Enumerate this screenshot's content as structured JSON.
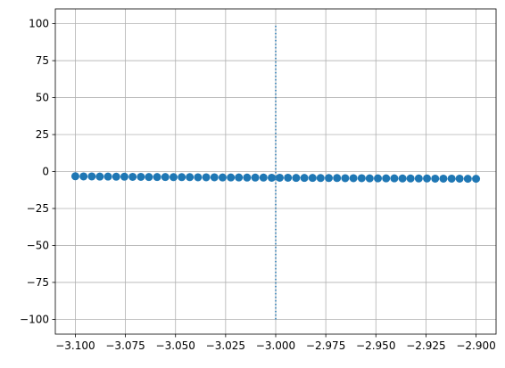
{
  "chart_data": {
    "type": "scatter",
    "title": "",
    "xlabel": "",
    "ylabel": "",
    "xlim": [
      -3.11,
      -2.89
    ],
    "ylim": [
      -110,
      110
    ],
    "grid": true,
    "xticks": [
      -3.1,
      -3.075,
      -3.05,
      -3.025,
      -3.0,
      -2.975,
      -2.95,
      -2.925,
      -2.9
    ],
    "xtick_labels": [
      "−3.100",
      "−3.075",
      "−3.050",
      "−3.025",
      "−3.000",
      "−2.975",
      "−2.950",
      "−2.925",
      "−2.900"
    ],
    "yticks": [
      100,
      75,
      50,
      25,
      0,
      -25,
      -50,
      -75,
      -100
    ],
    "ytick_labels": [
      "100",
      "75",
      "50",
      "25",
      "0",
      "−25",
      "−50",
      "−75",
      "−100"
    ],
    "series": [
      {
        "kind": "scatter",
        "color": "#1f77b4",
        "x": [
          -3.1,
          -3.0959,
          -3.0918,
          -3.0878,
          -3.0837,
          -3.0796,
          -3.0755,
          -3.0714,
          -3.0673,
          -3.0633,
          -3.0592,
          -3.0551,
          -3.051,
          -3.0469,
          -3.0429,
          -3.0388,
          -3.0347,
          -3.0306,
          -3.0265,
          -3.0224,
          -3.0184,
          -3.0143,
          -3.0102,
          -3.0061,
          -3.002,
          -2.998,
          -2.9939,
          -2.9898,
          -2.9857,
          -2.9816,
          -2.9776,
          -2.9735,
          -2.9694,
          -2.9653,
          -2.9612,
          -2.9571,
          -2.9531,
          -2.949,
          -2.9449,
          -2.9408,
          -2.9367,
          -2.9327,
          -2.9286,
          -2.9245,
          -2.9204,
          -2.9163,
          -2.9122,
          -2.9082,
          -2.9041,
          -2.9
        ],
        "y": [
          -3.2,
          -3.3,
          -3.3,
          -3.4,
          -3.4,
          -3.5,
          -3.5,
          -3.6,
          -3.6,
          -3.7,
          -3.7,
          -3.7,
          -3.8,
          -3.8,
          -3.8,
          -3.9,
          -3.9,
          -3.9,
          -4.0,
          -4.0,
          -4.0,
          -4.1,
          -4.1,
          -4.1,
          -4.2,
          -4.2,
          -4.2,
          -4.3,
          -4.3,
          -4.3,
          -4.4,
          -4.4,
          -4.4,
          -4.5,
          -4.5,
          -4.5,
          -4.6,
          -4.6,
          -4.6,
          -4.6,
          -4.7,
          -4.7,
          -4.7,
          -4.7,
          -4.8,
          -4.8,
          -4.8,
          -4.8,
          -4.9,
          -4.9
        ]
      },
      {
        "kind": "vline",
        "color": "#1f77b4",
        "linestyle": "dotted",
        "x": -3.0,
        "y_range": [
          -100,
          100
        ]
      }
    ]
  }
}
